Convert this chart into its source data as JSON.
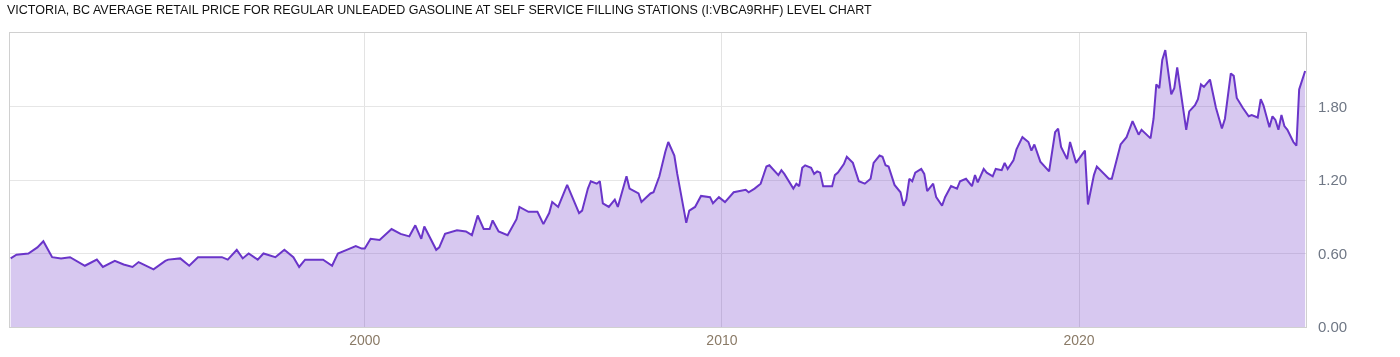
{
  "chart_data": {
    "type": "area",
    "title": "VICTORIA, BC AVERAGE RETAIL PRICE FOR REGULAR UNLEADED GASOLINE AT SELF SERVICE FILLING STATIONS (I:VBCA9RHF) LEVEL CHART",
    "x": [
      "1990-02",
      "1990-04",
      "1990-08",
      "1990-11",
      "1991-01",
      "1991-04",
      "1991-07",
      "1991-10",
      "1992-03",
      "1992-07",
      "1992-09",
      "1993-01",
      "1993-04",
      "1993-07",
      "1993-09",
      "1994-02",
      "1994-06",
      "1994-07",
      "1994-11",
      "1995-02",
      "1995-05",
      "1996-01",
      "1996-03",
      "1996-06",
      "1996-08",
      "1996-10",
      "1997-01",
      "1997-03",
      "1997-07",
      "1997-10",
      "1998-01",
      "1998-03",
      "1998-05",
      "1998-11",
      "1999-02",
      "1999-04",
      "1999-07",
      "1999-10",
      "1999-12",
      "2000-01",
      "2000-03",
      "2000-06",
      "2000-10",
      "2001-01",
      "2001-04",
      "2001-06",
      "2001-08",
      "2001-09",
      "2002-01",
      "2002-02",
      "2002-04",
      "2002-08",
      "2002-11",
      "2003-01",
      "2003-03",
      "2003-05",
      "2003-07",
      "2003-08",
      "2003-10",
      "2004-01",
      "2004-04",
      "2004-05",
      "2004-08",
      "2004-11",
      "2005-01",
      "2005-03",
      "2005-04",
      "2005-06",
      "2005-09",
      "2006-01",
      "2006-02",
      "2006-04",
      "2006-05",
      "2006-07",
      "2006-08",
      "2006-09",
      "2006-11",
      "2007-01",
      "2007-02",
      "2007-05",
      "2007-06",
      "2007-09",
      "2007-10",
      "2008-01",
      "2008-02",
      "2008-04",
      "2008-06",
      "2008-07",
      "2008-09",
      "2008-10",
      "2009-01",
      "2009-02",
      "2009-04",
      "2009-06",
      "2009-09",
      "2009-10",
      "2009-12",
      "2010-02",
      "2010-05",
      "2010-09",
      "2010-10",
      "2010-12",
      "2011-02",
      "2011-04",
      "2011-05",
      "2011-08",
      "2011-09",
      "2011-10",
      "2012-01",
      "2012-02",
      "2012-03",
      "2012-04",
      "2012-05",
      "2012-07",
      "2012-08",
      "2012-09",
      "2012-10",
      "2012-11",
      "2013-02",
      "2013-03",
      "2013-04",
      "2013-06",
      "2013-07",
      "2013-09",
      "2013-11",
      "2014-01",
      "2014-03",
      "2014-04",
      "2014-06",
      "2014-07",
      "2014-08",
      "2014-09",
      "2014-11",
      "2015-01",
      "2015-02",
      "2015-03",
      "2015-04",
      "2015-05",
      "2015-06",
      "2015-08",
      "2015-09",
      "2015-10",
      "2015-12",
      "2016-01",
      "2016-03",
      "2016-04",
      "2016-06",
      "2016-08",
      "2016-09",
      "2016-11",
      "2017-01",
      "2017-02",
      "2017-03",
      "2017-05",
      "2017-06",
      "2017-08",
      "2017-09",
      "2017-11",
      "2017-12",
      "2018-01",
      "2018-03",
      "2018-04",
      "2018-06",
      "2018-08",
      "2018-09",
      "2018-10",
      "2018-12",
      "2019-03",
      "2019-05",
      "2019-06",
      "2019-07",
      "2019-09",
      "2019-10",
      "2019-12",
      "2020-03",
      "2020-04",
      "2020-06",
      "2020-07",
      "2020-11",
      "2020-12",
      "2021-03",
      "2021-05",
      "2021-07",
      "2021-09",
      "2021-10",
      "2022-01",
      "2022-02",
      "2022-03",
      "2022-04",
      "2022-05",
      "2022-06",
      "2022-08",
      "2022-09",
      "2022-10",
      "2023-01",
      "2023-02",
      "2023-04",
      "2023-05",
      "2023-06",
      "2023-07",
      "2023-09",
      "2023-11",
      "2024-01",
      "2024-02",
      "2024-04",
      "2024-05",
      "2024-06",
      "2024-08",
      "2024-10",
      "2024-11",
      "2025-01",
      "2025-02",
      "2025-03",
      "2025-05",
      "2025-06",
      "2025-07",
      "2025-08",
      "2025-09",
      "2025-10",
      "2025-11",
      "2026-01",
      "2026-02",
      "2026-03",
      "2026-05"
    ],
    "series": [
      {
        "color": "#6a35c9",
        "values": [
          0.56,
          0.59,
          0.6,
          0.65,
          0.7,
          0.57,
          0.56,
          0.57,
          0.5,
          0.55,
          0.49,
          0.54,
          0.51,
          0.49,
          0.53,
          0.47,
          0.54,
          0.55,
          0.56,
          0.5,
          0.57,
          0.57,
          0.55,
          0.63,
          0.56,
          0.6,
          0.55,
          0.6,
          0.57,
          0.63,
          0.57,
          0.49,
          0.55,
          0.55,
          0.5,
          0.6,
          0.63,
          0.66,
          0.64,
          0.64,
          0.72,
          0.71,
          0.8,
          0.76,
          0.74,
          0.83,
          0.72,
          0.82,
          0.63,
          0.65,
          0.76,
          0.79,
          0.78,
          0.75,
          0.91,
          0.8,
          0.8,
          0.87,
          0.78,
          0.75,
          0.88,
          0.98,
          0.94,
          0.94,
          0.84,
          0.93,
          1.02,
          0.98,
          1.16,
          0.93,
          0.95,
          1.13,
          1.19,
          1.17,
          1.19,
          1.01,
          0.98,
          1.04,
          0.98,
          1.23,
          1.13,
          1.09,
          1.02,
          1.09,
          1.1,
          1.23,
          1.43,
          1.51,
          1.4,
          1.25,
          0.85,
          0.95,
          0.98,
          1.07,
          1.06,
          1.01,
          1.06,
          1.02,
          1.1,
          1.12,
          1.1,
          1.13,
          1.17,
          1.31,
          1.32,
          1.24,
          1.28,
          1.25,
          1.13,
          1.17,
          1.15,
          1.3,
          1.32,
          1.3,
          1.25,
          1.27,
          1.26,
          1.15,
          1.15,
          1.24,
          1.26,
          1.33,
          1.39,
          1.34,
          1.19,
          1.17,
          1.21,
          1.34,
          1.4,
          1.39,
          1.32,
          1.31,
          1.16,
          1.1,
          0.99,
          1.04,
          1.21,
          1.19,
          1.26,
          1.29,
          1.25,
          1.11,
          1.17,
          1.06,
          0.99,
          1.06,
          1.15,
          1.13,
          1.19,
          1.21,
          1.15,
          1.24,
          1.18,
          1.29,
          1.26,
          1.23,
          1.29,
          1.28,
          1.34,
          1.29,
          1.36,
          1.45,
          1.55,
          1.51,
          1.44,
          1.49,
          1.35,
          1.27,
          1.59,
          1.62,
          1.47,
          1.37,
          1.51,
          1.34,
          1.44,
          1.0,
          1.24,
          1.31,
          1.21,
          1.21,
          1.49,
          1.55,
          1.68,
          1.57,
          1.61,
          1.54,
          1.7,
          1.98,
          1.95,
          2.18,
          2.26,
          1.9,
          1.95,
          2.12,
          1.61,
          1.76,
          1.81,
          1.86,
          1.98,
          1.96,
          2.02,
          1.79,
          1.62,
          1.7,
          2.07,
          2.05,
          1.87,
          1.79,
          1.72,
          1.73,
          1.71,
          1.86,
          1.81,
          1.63,
          1.72,
          1.69,
          1.61,
          1.73,
          1.64,
          1.61,
          1.51,
          1.48,
          1.94,
          2.09
        ]
      }
    ],
    "xlim": [
      "1990-01-25",
      "2026-05-10"
    ],
    "xticks": [
      "2000",
      "2010",
      "2020"
    ],
    "ylim": [
      0,
      2.4
    ],
    "yticks": [
      {
        "value": 0,
        "label": "0.00"
      },
      {
        "value": 0.6,
        "label": "0.60"
      },
      {
        "value": 1.2,
        "label": "1.20"
      },
      {
        "value": 1.8,
        "label": "1.80"
      }
    ],
    "grid": true
  }
}
